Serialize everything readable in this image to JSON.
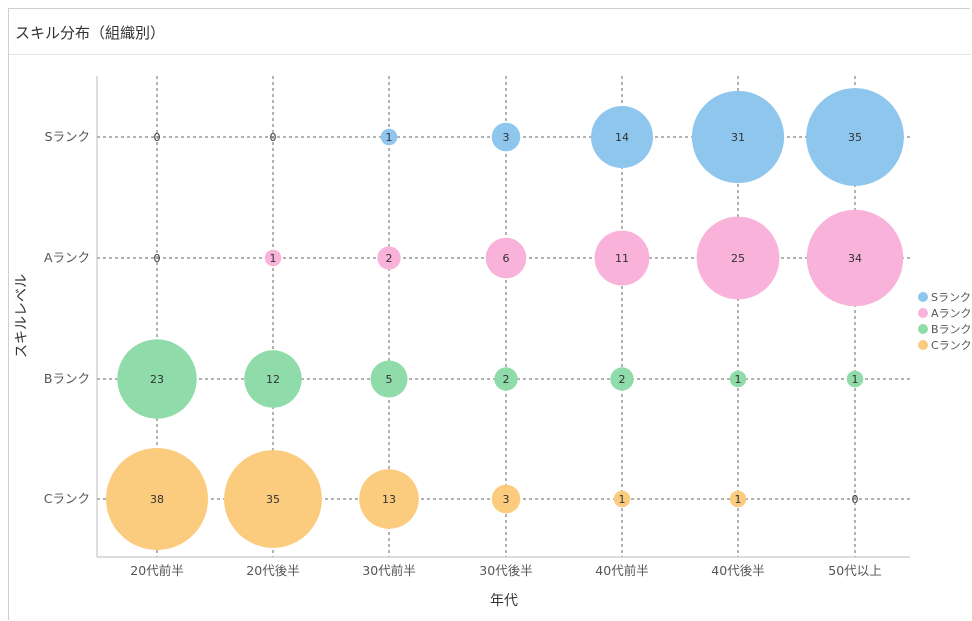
{
  "header": {
    "title": "スキル分布（組織別）"
  },
  "chart_data": {
    "type": "scatter",
    "title": "スキル分布（組織別）",
    "xlabel": "年代",
    "ylabel": "スキルレベル",
    "categories": [
      "20代前半",
      "20代後半",
      "30代前半",
      "30代後半",
      "40代前半",
      "40代後半",
      "50代以上"
    ],
    "y_categories": [
      "Sランク",
      "Aランク",
      "Bランク",
      "Cランク"
    ],
    "grid": true,
    "legend_position": "right",
    "series": [
      {
        "name": "Sランク",
        "color": "#8ec6ee",
        "values": [
          0,
          0,
          1,
          3,
          14,
          31,
          35
        ]
      },
      {
        "name": "Aランク",
        "color": "#f9b2da",
        "values": [
          0,
          1,
          2,
          6,
          11,
          25,
          34
        ]
      },
      {
        "name": "Bランク",
        "color": "#8fdba9",
        "values": [
          23,
          12,
          5,
          2,
          2,
          1,
          1
        ]
      },
      {
        "name": "Cランク",
        "color": "#fbcb7e",
        "values": [
          38,
          35,
          13,
          3,
          1,
          1,
          0
        ]
      }
    ]
  }
}
